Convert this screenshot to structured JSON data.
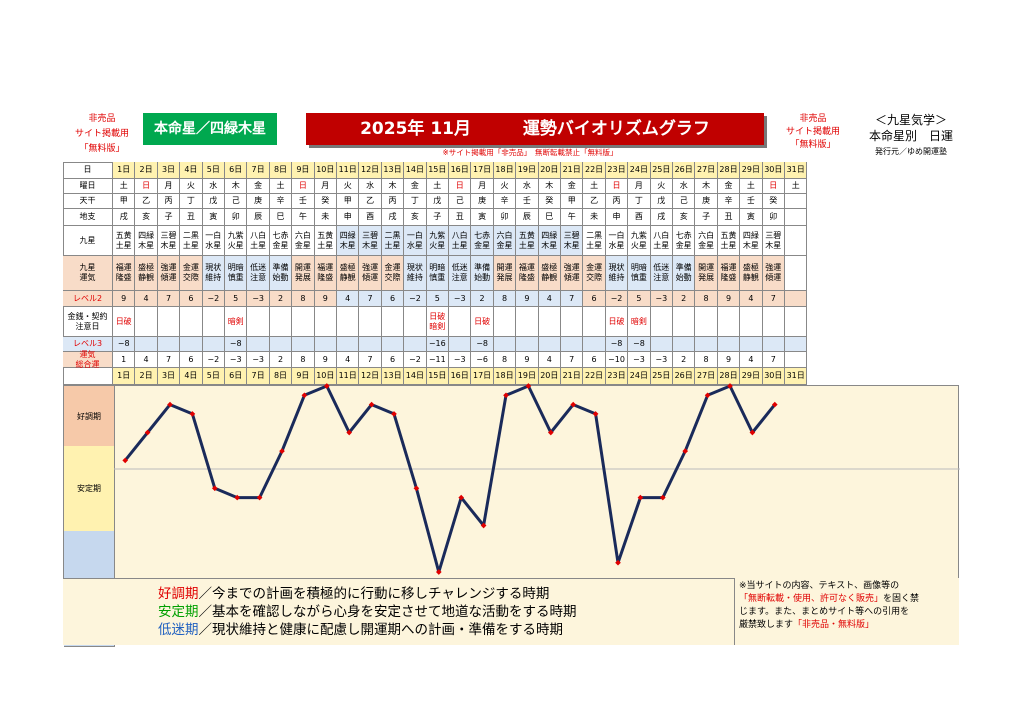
{
  "header": {
    "not_for_sale": "非売品",
    "site_use": "サイト掲載用",
    "free_version": "「無料版」",
    "honmeisei": "本命星／四緑木星",
    "title_year_month": "2025年 11月",
    "title_main": "運勢バイオリズムグラフ",
    "kyusei_title": "＜九星気学＞",
    "kyusei_sub": "本命星別　日運",
    "publisher": "発行元／ゆめ開運塾",
    "right_not_for_sale": "非売品",
    "right_site_use": "サイト掲載用",
    "right_free_version": "「無料版」",
    "notice_mid": "※サイト掲載用「非売品」　無断転載禁止「無料版」"
  },
  "row_labels": {
    "day": "日",
    "weekday": "曜日",
    "tenkan": "天干",
    "chishi": "地支",
    "kyusei": "九星",
    "kyusei_unki_1": "九星",
    "kyusei_unki_2": "運気",
    "level2": "レベル2",
    "money_1": "金銭・契約",
    "money_2": "注意日",
    "level3": "レベル3",
    "total_1": "運気",
    "total_2": "総合運"
  },
  "days": [
    "1日",
    "2日",
    "3日",
    "4日",
    "5日",
    "6日",
    "7日",
    "8日",
    "9日",
    "10日",
    "11日",
    "12日",
    "13日",
    "14日",
    "15日",
    "16日",
    "17日",
    "18日",
    "19日",
    "20日",
    "21日",
    "22日",
    "23日",
    "24日",
    "25日",
    "26日",
    "27日",
    "28日",
    "29日",
    "30日",
    "31日"
  ],
  "weekdays": [
    "土",
    "日",
    "月",
    "火",
    "水",
    "木",
    "金",
    "土",
    "日",
    "月",
    "火",
    "水",
    "木",
    "金",
    "土",
    "日",
    "月",
    "火",
    "水",
    "木",
    "金",
    "土",
    "日",
    "月",
    "火",
    "水",
    "木",
    "金",
    "土",
    "日",
    "土"
  ],
  "sunday_indexes": [
    1,
    8,
    15,
    22,
    29
  ],
  "tenkan": [
    "甲",
    "乙",
    "丙",
    "丁",
    "戊",
    "己",
    "庚",
    "辛",
    "壬",
    "癸",
    "甲",
    "乙",
    "丙",
    "丁",
    "戊",
    "己",
    "庚",
    "辛",
    "壬",
    "癸",
    "甲",
    "乙",
    "丙",
    "丁",
    "戊",
    "己",
    "庚",
    "辛",
    "壬",
    "癸",
    ""
  ],
  "chishi": [
    "戌",
    "亥",
    "子",
    "丑",
    "寅",
    "卯",
    "辰",
    "巳",
    "午",
    "未",
    "申",
    "酉",
    "戌",
    "亥",
    "子",
    "丑",
    "寅",
    "卯",
    "辰",
    "巳",
    "午",
    "未",
    "申",
    "酉",
    "戌",
    "亥",
    "子",
    "丑",
    "寅",
    "卯",
    ""
  ],
  "kyusei": [
    [
      "五黄",
      "土星"
    ],
    [
      "四緑",
      "木星"
    ],
    [
      "三碧",
      "木星"
    ],
    [
      "二黒",
      "土星"
    ],
    [
      "一白",
      "水星"
    ],
    [
      "九紫",
      "火星"
    ],
    [
      "八白",
      "土星"
    ],
    [
      "七赤",
      "金星"
    ],
    [
      "六白",
      "金星"
    ],
    [
      "五黄",
      "土星"
    ],
    [
      "四緑",
      "木星"
    ],
    [
      "三碧",
      "木星"
    ],
    [
      "二黒",
      "土星"
    ],
    [
      "一白",
      "水星"
    ],
    [
      "九紫",
      "火星"
    ],
    [
      "八白",
      "土星"
    ],
    [
      "七赤",
      "金星"
    ],
    [
      "六白",
      "金星"
    ],
    [
      "五黄",
      "土星"
    ],
    [
      "四緑",
      "木星"
    ],
    [
      "三碧",
      "木星"
    ],
    [
      "二黒",
      "土星"
    ],
    [
      "一白",
      "水星"
    ],
    [
      "九紫",
      "火星"
    ],
    [
      "八白",
      "土星"
    ],
    [
      "七赤",
      "金星"
    ],
    [
      "六白",
      "金星"
    ],
    [
      "五黄",
      "土星"
    ],
    [
      "四緑",
      "木星"
    ],
    [
      "三碧",
      "木星"
    ],
    [
      "",
      ""
    ]
  ],
  "unki": [
    [
      "福運",
      "隆盛"
    ],
    [
      "盛極",
      "静観"
    ],
    [
      "強運",
      "傾運"
    ],
    [
      "金運",
      "交際"
    ],
    [
      "現状",
      "維持"
    ],
    [
      "明暗",
      "慎重"
    ],
    [
      "低迷",
      "注意"
    ],
    [
      "準備",
      "始動"
    ],
    [
      "開運",
      "発展"
    ],
    [
      "福運",
      "隆盛"
    ],
    [
      "盛極",
      "静観"
    ],
    [
      "強運",
      "傾運"
    ],
    [
      "金運",
      "交際"
    ],
    [
      "現状",
      "維持"
    ],
    [
      "明暗",
      "慎重"
    ],
    [
      "低迷",
      "注意"
    ],
    [
      "準備",
      "始動"
    ],
    [
      "開運",
      "発展"
    ],
    [
      "福運",
      "隆盛"
    ],
    [
      "盛極",
      "静観"
    ],
    [
      "強運",
      "傾運"
    ],
    [
      "金運",
      "交際"
    ],
    [
      "現状",
      "維持"
    ],
    [
      "明暗",
      "慎重"
    ],
    [
      "低迷",
      "注意"
    ],
    [
      "準備",
      "始動"
    ],
    [
      "開運",
      "発展"
    ],
    [
      "福運",
      "隆盛"
    ],
    [
      "盛極",
      "静観"
    ],
    [
      "強運",
      "傾運"
    ],
    [
      "",
      ""
    ]
  ],
  "level2": [
    "9",
    "4",
    "7",
    "6",
    "−2",
    "5",
    "−3",
    "2",
    "8",
    "9",
    "4",
    "7",
    "6",
    "−2",
    "5",
    "−3",
    "2",
    "8",
    "9",
    "4",
    "7",
    "6",
    "−2",
    "5",
    "−3",
    "2",
    "8",
    "9",
    "4",
    "7",
    ""
  ],
  "money": [
    [
      "日破"
    ],
    [],
    [],
    [],
    [],
    [
      "暗剣"
    ],
    [],
    [],
    [],
    [],
    [],
    [],
    [],
    [],
    [
      "日破",
      "暗剣"
    ],
    [],
    [
      "日破"
    ],
    [],
    [],
    [],
    [],
    [],
    [
      "日破"
    ],
    [
      "暗剣"
    ],
    [],
    [],
    [],
    [],
    [],
    [],
    []
  ],
  "level3": [
    "−8",
    "",
    "",
    "",
    "",
    "−8",
    "",
    "",
    "",
    "",
    "",
    "",
    "",
    "",
    "−16",
    "",
    "−8",
    "",
    "",
    "",
    "",
    "",
    "−8",
    "−8",
    "",
    "",
    "",
    "",
    "",
    "",
    ""
  ],
  "total": [
    "1",
    "4",
    "7",
    "6",
    "−2",
    "−3",
    "−3",
    "2",
    "8",
    "9",
    "4",
    "7",
    "6",
    "−2",
    "−11",
    "−3",
    "−6",
    "8",
    "9",
    "4",
    "7",
    "6",
    "−10",
    "−3",
    "−3",
    "2",
    "8",
    "9",
    "4",
    "7",
    ""
  ],
  "bands": {
    "good": "好調期",
    "stable": "安定期",
    "low": "低迷期"
  },
  "legend": {
    "l1_key": "好調期",
    "l1_text": "／今までの計画を積極的に行動に移しチャレンジする時期",
    "l2_key": "安定期",
    "l2_text": "／基本を確認しながら心身を安定させて地道な活動をする時期",
    "l3_key": "低迷期",
    "l3_text": "／現状維持と健康に配慮し開運期への計画・準備をする時期"
  },
  "notice": {
    "n1": "※当サイトの内容、テキスト、画像等の",
    "n2_red": "「無断転載・使用、許可なく販売」",
    "n2_rest": "を固く禁",
    "n3": "じます。また、まとめサイト等への引用を",
    "n4": "厳禁致します",
    "n4_red": "「非売品・無料版」"
  },
  "colors": {
    "title_bg": "#c00000",
    "honmei_bg": "#00a84f",
    "line": "#1a2a5a",
    "marker": "#e00000",
    "band_good": "#f6c9a9",
    "band_stable": "#fff2b0",
    "band_low": "#c6d8ee",
    "level2_bg": "#f8dcc8",
    "level3_bg": "#dce8f6",
    "label_bg": "#f8dcc8"
  },
  "chart_data": {
    "type": "line",
    "x": [
      "1日",
      "2日",
      "3日",
      "4日",
      "5日",
      "6日",
      "7日",
      "8日",
      "9日",
      "10日",
      "11日",
      "12日",
      "13日",
      "14日",
      "15日",
      "16日",
      "17日",
      "18日",
      "19日",
      "20日",
      "21日",
      "22日",
      "23日",
      "24日",
      "25日",
      "26日",
      "27日",
      "28日",
      "29日",
      "30日"
    ],
    "values": [
      1,
      4,
      7,
      6,
      -2,
      -3,
      -3,
      2,
      8,
      9,
      4,
      7,
      6,
      -2,
      -11,
      -3,
      -6,
      8,
      9,
      4,
      7,
      6,
      -10,
      -3,
      -3,
      2,
      8,
      9,
      4,
      7
    ],
    "ylim": [
      -11,
      9
    ],
    "bands": [
      "好調期",
      "安定期",
      "低迷期"
    ],
    "grid": false,
    "legend": "none"
  }
}
